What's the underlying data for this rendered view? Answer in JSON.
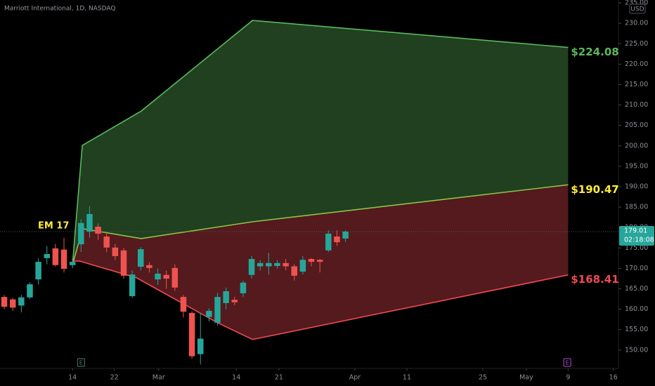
{
  "chart_data": {
    "type": "candlestick",
    "title": "Marriott International, 1D, NASDAQ",
    "currency": "USD",
    "up_color": "#26a69a",
    "down_color": "#ef5350",
    "x": [
      -8,
      -7,
      -6,
      -5,
      -4,
      -3,
      -2,
      -1,
      0,
      1,
      2,
      3,
      4,
      5,
      6,
      7,
      8,
      9,
      10,
      11,
      12,
      13,
      14,
      15,
      16,
      17,
      18,
      19,
      20,
      21,
      22,
      23,
      24,
      25,
      26,
      27,
      28,
      29,
      30,
      31,
      32
    ],
    "open": [
      163.0,
      162.4,
      160.9,
      162.9,
      167.3,
      172.5,
      174.9,
      174.6,
      170.8,
      175.9,
      179.0,
      180.2,
      177.8,
      175.1,
      174.4,
      163.2,
      170.4,
      170.8,
      167.3,
      168.4,
      170.1,
      163.0,
      159.1,
      149.0,
      158.1,
      156.7,
      161.5,
      162.3,
      163.9,
      168.4,
      170.5,
      170.5,
      170.6,
      171.3,
      170.5,
      169.2,
      172.3,
      172.1,
      174.4,
      177.8,
      177.3
    ],
    "high": [
      163.5,
      162.8,
      163.5,
      166.6,
      172.5,
      175.5,
      176.0,
      177.5,
      172.5,
      182.0,
      185.2,
      181.0,
      178.5,
      176.0,
      175.0,
      169.5,
      175.2,
      171.5,
      170.0,
      169.5,
      171.0,
      163.5,
      159.5,
      159.0,
      160.2,
      164.0,
      165.3,
      163.0,
      167.0,
      173.0,
      172.0,
      173.8,
      172.0,
      172.3,
      171.0,
      173.0,
      172.5,
      172.3,
      179.3,
      179.3,
      179.3
    ],
    "low": [
      160.0,
      159.6,
      159.2,
      162.5,
      166.0,
      171.0,
      170.5,
      169.0,
      170.0,
      174.0,
      177.5,
      177.0,
      174.0,
      172.0,
      167.5,
      162.8,
      169.5,
      169.0,
      166.0,
      165.0,
      164.5,
      158.0,
      147.9,
      146.5,
      157.0,
      156.0,
      160.0,
      161.0,
      163.0,
      167.5,
      169.5,
      168.5,
      170.0,
      169.5,
      167.0,
      168.5,
      170.5,
      169.0,
      174.0,
      175.5,
      176.5
    ],
    "close": [
      160.6,
      160.4,
      162.9,
      166.1,
      171.6,
      173.5,
      170.8,
      169.9,
      171.6,
      181.1,
      183.3,
      178.5,
      175.1,
      173.0,
      168.2,
      168.5,
      174.7,
      170.1,
      168.7,
      167.5,
      165.3,
      159.4,
      148.5,
      152.8,
      159.6,
      163.0,
      164.4,
      161.7,
      166.5,
      172.3,
      171.3,
      171.3,
      171.3,
      170.5,
      168.2,
      172.1,
      171.6,
      171.6,
      178.5,
      176.4,
      179.01
    ],
    "range_upper": {
      "x": [
        0,
        1.15,
        8.05,
        21.1,
        58.1
      ],
      "values": [
        171.0,
        200.1,
        208.5,
        230.7,
        224.08
      ],
      "color": "#5cb85c",
      "end_label": "$224.08"
    },
    "range_middle": {
      "x": [
        0,
        1.2,
        8.05,
        21.1,
        58.1
      ],
      "values": [
        171.0,
        179.7,
        177.3,
        181.4,
        190.47
      ],
      "color": "#8bc34a",
      "label_color": "#ffeb3b",
      "end_label": "$190.47"
    },
    "range_lower": {
      "x": [
        0,
        0.8,
        7.5,
        17.0,
        21.1,
        58.1
      ],
      "values": [
        171.8,
        171.8,
        167.7,
        156.7,
        152.6,
        168.41
      ],
      "color": "#f04a54",
      "end_label": "$168.41"
    },
    "annotation": "EM 17",
    "events": [
      {
        "x": 1,
        "label": "E",
        "color": "#4f7f6f"
      },
      {
        "x": 58,
        "label": "E",
        "color": "#b04bd0"
      }
    ],
    "last_price": 179.01,
    "countdown": "02:18:08",
    "xlim": [
      -8.5,
      64
    ],
    "ylim": [
      145.5,
      235.7
    ],
    "xticks": [
      {
        "value": 0,
        "label": "14"
      },
      {
        "value": 4.9,
        "label": "22"
      },
      {
        "value": 10.1,
        "label": "Mar"
      },
      {
        "value": 19.2,
        "label": "14"
      },
      {
        "value": 24.2,
        "label": "21"
      },
      {
        "value": 33.1,
        "label": "Apr"
      },
      {
        "value": 39.2,
        "label": "11"
      },
      {
        "value": 48.1,
        "label": "25"
      },
      {
        "value": 53.2,
        "label": "May"
      },
      {
        "value": 58.1,
        "label": "9"
      },
      {
        "value": 63.4,
        "label": "16"
      }
    ],
    "yticks": [
      {
        "value": 150,
        "label": "150.00"
      },
      {
        "value": 155,
        "label": "155.00"
      },
      {
        "value": 160,
        "label": "160.00"
      },
      {
        "value": 165,
        "label": "165.00"
      },
      {
        "value": 170,
        "label": "170.00"
      },
      {
        "value": 175,
        "label": "175.00"
      },
      {
        "value": 180,
        "label": "180.00"
      },
      {
        "value": 185,
        "label": "185.00"
      },
      {
        "value": 190,
        "label": "190.00"
      },
      {
        "value": 195,
        "label": "195.00"
      },
      {
        "value": 200,
        "label": "200.00"
      },
      {
        "value": 205,
        "label": "205.00"
      },
      {
        "value": 210,
        "label": "210.00"
      },
      {
        "value": 215,
        "label": "215.00"
      },
      {
        "value": 220,
        "label": "220.00"
      },
      {
        "value": 225,
        "label": "225.00"
      },
      {
        "value": 230,
        "label": "230.00"
      },
      {
        "value": 235,
        "label": "235.00"
      }
    ]
  }
}
